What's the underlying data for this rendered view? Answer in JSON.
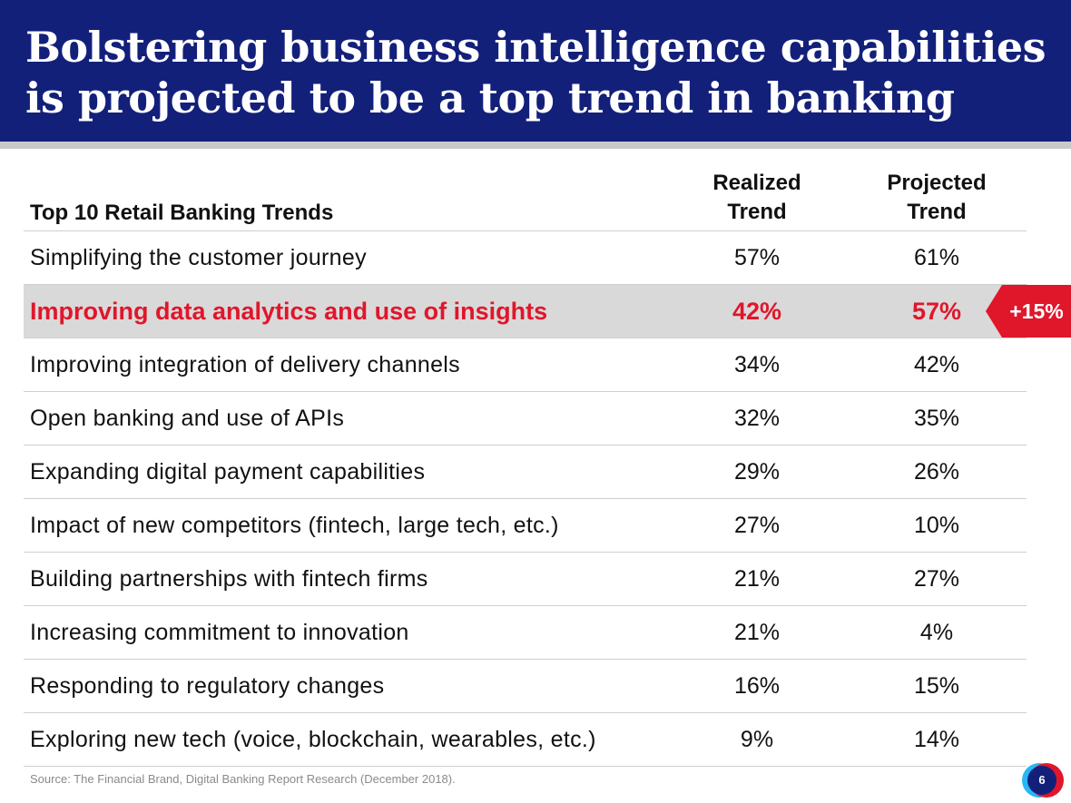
{
  "header": {
    "title": "Bolstering business intelligence capabilities is projected to be a top trend in banking"
  },
  "chart_data": {
    "type": "table",
    "title": "Bolstering business intelligence capabilities is projected to be a top trend in banking",
    "row_header": "Top 10 Retail Banking Trends",
    "columns": [
      {
        "line1": "Realized",
        "line2": "Trend"
      },
      {
        "line1": "Projected",
        "line2": "Trend"
      }
    ],
    "rows": [
      {
        "label": "Simplifying the customer journey",
        "realized": "57%",
        "projected": "61%",
        "highlight": false
      },
      {
        "label": "Improving data analytics and use of insights",
        "realized": "42%",
        "projected": "57%",
        "highlight": true
      },
      {
        "label": "Improving integration of delivery channels",
        "realized": "34%",
        "projected": "42%",
        "highlight": false
      },
      {
        "label": "Open banking and use of APIs",
        "realized": "32%",
        "projected": "35%",
        "highlight": false
      },
      {
        "label": "Expanding digital payment capabilities",
        "realized": "29%",
        "projected": "26%",
        "highlight": false
      },
      {
        "label": "Impact of new competitors (fintech, large tech, etc.)",
        "realized": "27%",
        "projected": "10%",
        "highlight": false
      },
      {
        "label": "Building partnerships with fintech firms",
        "realized": "21%",
        "projected": "27%",
        "highlight": false
      },
      {
        "label": "Increasing commitment to innovation",
        "realized": "21%",
        "projected": "4%",
        "highlight": false
      },
      {
        "label": "Responding to regulatory changes",
        "realized": "16%",
        "projected": "15%",
        "highlight": false
      },
      {
        "label": "Exploring new tech (voice, blockchain, wearables, etc.)",
        "realized": "9%",
        "projected": "14%",
        "highlight": false
      }
    ],
    "callout": "+15%",
    "source": "Source: The Financial Brand, Digital Banking Report Research (December 2018)."
  },
  "footer": {
    "page_number": "6"
  },
  "colors": {
    "header_bg": "#13207a",
    "highlight_text": "#e0162b",
    "highlight_bg": "#d9d9d9",
    "callout_bg": "#e0162b"
  }
}
